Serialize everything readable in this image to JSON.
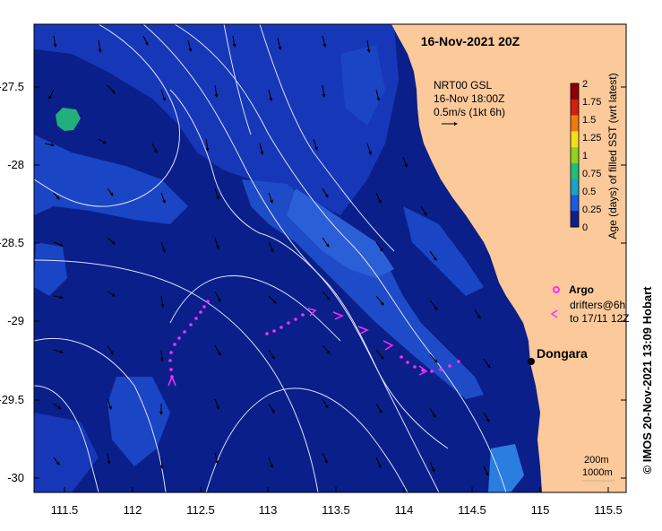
{
  "title": "16-Nov-2021 20Z",
  "product": {
    "line1": "NRT00 GSL",
    "line2": "16-Nov 18:00Z",
    "line3": "0.5m/s (1kt 6h)"
  },
  "colorbar": {
    "label": "Age (days) of filled SST (wrt latest)",
    "ticks": [
      "2",
      "1.75",
      "1.5",
      "1.25",
      "1",
      "0.75",
      "0.5",
      "0.25",
      "0"
    ],
    "colors": [
      "#8b0000",
      "#d02010",
      "#f07a10",
      "#f2e11a",
      "#8fd51f",
      "#1fbf7a",
      "#1aa2c8",
      "#1a5be0",
      "#12208c"
    ]
  },
  "legend": {
    "argo_label": "Argo",
    "drifters_line1": "drifters@6h",
    "drifters_line2": "to 17/11 12Z"
  },
  "place_label": "Dongara",
  "contours": {
    "line1": "200m",
    "line2": "1000m"
  },
  "credit": "©  IMOS 20-Nov-2021 13:09 Hobart",
  "axes": {
    "lat_ticks": [
      "-27.5",
      "-28",
      "-28.5",
      "-29",
      "-29.5",
      "-30"
    ],
    "lon_ticks": [
      "111.5",
      "112",
      "112.5",
      "113",
      "113.5",
      "114",
      "114.5",
      "115",
      "115.5"
    ]
  },
  "colors": {
    "ocean_deep": "#0a1f8a",
    "ocean_mid": "#1637b8",
    "ocean_light": "#2a5fd8",
    "land": "#fbc99a",
    "drifter": "#ff2bff",
    "contour": "#d9e2ff"
  }
}
